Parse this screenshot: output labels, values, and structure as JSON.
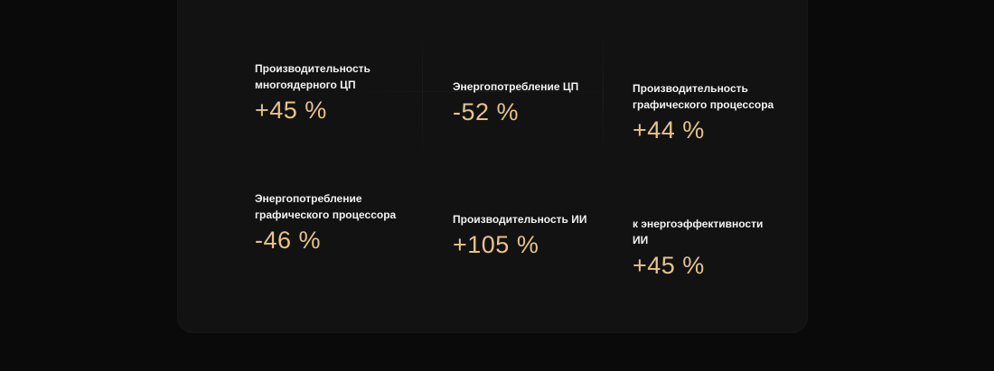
{
  "colors": {
    "background": "#0a0a0a",
    "card": "#121212",
    "label": "#f2f2f2",
    "value": "#e6c38a"
  },
  "stats": [
    {
      "label_lines": [
        "Производительность",
        "многоядерного ЦП"
      ],
      "value": "+45 %"
    },
    {
      "label_lines": [
        "Энергопотребление ЦП"
      ],
      "value": "-52 %"
    },
    {
      "label_lines": [
        "Производительность",
        "графического процессора"
      ],
      "value": "+44 %"
    },
    {
      "label_lines": [
        "Энергопотребление",
        "графического процессора"
      ],
      "value": "-46 %"
    },
    {
      "label_lines": [
        "Производительность ИИ"
      ],
      "value": "+105 %"
    },
    {
      "label_lines": [
        "к энергоэффективности",
        "ИИ"
      ],
      "value": "+45 %"
    }
  ]
}
